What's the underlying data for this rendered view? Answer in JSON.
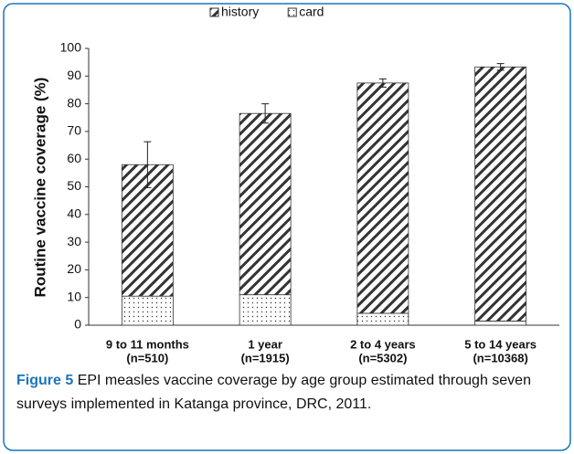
{
  "chart_data": {
    "type": "stacked-bar",
    "y_label": "Routine vaccine coverage (%)",
    "categories": [
      "9 to 11 months",
      "1 year",
      "2 to 4 years",
      "5 to 14 years"
    ],
    "sample_sizes": [
      "(n=510)",
      "(n=1915)",
      "(n=5302)",
      "(n=10368)"
    ],
    "series": [
      {
        "name": "card",
        "color": "#333333",
        "pattern": "dots",
        "values": [
          10.5,
          11,
          4.3,
          1.5
        ]
      },
      {
        "name": "history",
        "color": "#333333",
        "pattern": "hatch",
        "values": [
          47.5,
          65.5,
          83.2,
          91.8
        ]
      }
    ],
    "errors": [
      8.3,
      3.5,
      1.5,
      1.2
    ],
    "legend_order": [
      1,
      0
    ],
    "legend": "top",
    "ylim": [
      0,
      100
    ],
    "yticks": [
      0,
      10,
      20,
      30,
      40,
      50,
      60,
      70,
      80,
      90,
      100
    ]
  },
  "caption": {
    "label": "Figure 5",
    "text": "EPI measles vaccine coverage by age group estimated through seven surveys implemented in Katanga province, DRC, 2011."
  }
}
